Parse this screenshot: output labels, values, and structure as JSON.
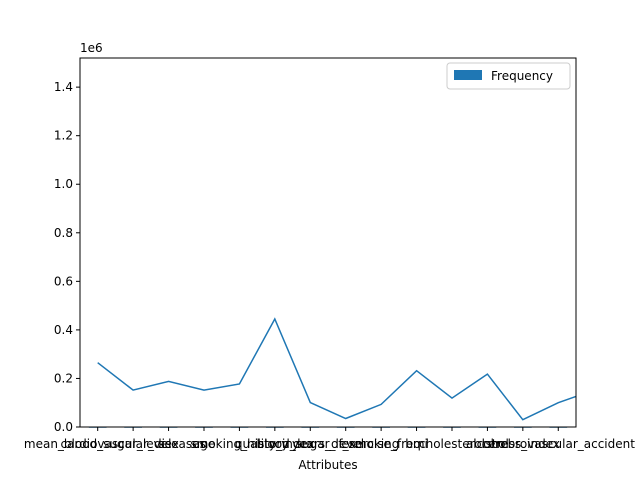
{
  "chart_data": {
    "type": "bar",
    "title": "",
    "xlabel": "Attributes",
    "ylabel": "",
    "y_offset_label": "1e6",
    "ylim": [
      0,
      1.52
    ],
    "yticks": [
      0.0,
      0.2,
      0.4,
      0.6,
      0.8,
      1.0,
      1.2,
      1.4
    ],
    "grid": false,
    "legend": {
      "position": "top-right",
      "entries": [
        "Frequency"
      ]
    },
    "categories": [
      "mean_blood_sugar_level",
      "cardiovascular_diseases",
      "sex",
      "age",
      "smoking_history",
      "quality_index",
      "blood_sugar_level",
      "years_of_smoking",
      "exercise_freq",
      "bmi",
      "cholesterol",
      "alcohol",
      "stress_index",
      "cerebrovascular_accident"
    ],
    "series": [
      {
        "name": "Frequency",
        "kind": "bar",
        "color": "#1f77b4",
        "values": [
          0.001,
          0.001,
          0.001,
          0.001,
          0.001,
          0.001,
          0.001,
          0.001,
          0.001,
          0.001,
          0.001,
          0.001,
          0.001,
          0.001
        ]
      },
      {
        "kind": "line",
        "color": "#1f77b4",
        "values": [
          0.265,
          0.152,
          0.188,
          0.152,
          0.177,
          0.445,
          0.101,
          0.035,
          0.093,
          0.232,
          0.119,
          0.218,
          0.03,
          0.1
        ],
        "trailing_value": 0.152
      }
    ]
  }
}
